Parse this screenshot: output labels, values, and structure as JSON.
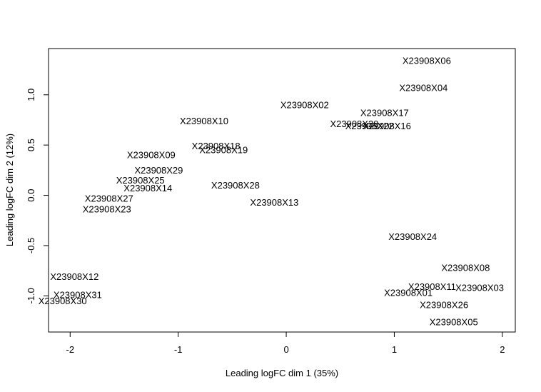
{
  "chart_data": {
    "type": "scatter",
    "title": "",
    "xlabel": "Leading logFC dim 1 (35%)",
    "ylabel": "Leading logFC dim 2 (12%)",
    "xlim": [
      -2.2,
      2.12
    ],
    "ylim": [
      -1.36,
      1.46
    ],
    "xticks": [
      -2,
      -1,
      0,
      1,
      2
    ],
    "xtick_labels": [
      "-2",
      "-1",
      "0",
      "1",
      "2"
    ],
    "yticks": [
      -1.0,
      -0.5,
      0.0,
      0.5,
      1.0
    ],
    "ytick_labels": [
      "-1.0",
      "-0.5",
      "0.0",
      "0.5",
      "1.0"
    ],
    "grid": false,
    "points": [
      {
        "label": "X23908X06",
        "x": 1.3,
        "y": 1.34
      },
      {
        "label": "X23908X04",
        "x": 1.27,
        "y": 1.07
      },
      {
        "label": "X23908X02",
        "x": 0.17,
        "y": 0.9
      },
      {
        "label": "X23908X17",
        "x": 0.91,
        "y": 0.82
      },
      {
        "label": "X23908X10",
        "x": -0.76,
        "y": 0.74
      },
      {
        "label": "X23908X20",
        "x": 0.63,
        "y": 0.71
      },
      {
        "label": "X23908X22",
        "x": 0.77,
        "y": 0.69
      },
      {
        "label": "X23908X16",
        "x": 0.93,
        "y": 0.69
      },
      {
        "label": "X23908X18",
        "x": -0.65,
        "y": 0.49
      },
      {
        "label": "X23908X19",
        "x": -0.58,
        "y": 0.45
      },
      {
        "label": "X23908X09",
        "x": -1.25,
        "y": 0.4
      },
      {
        "label": "X23908X29",
        "x": -1.18,
        "y": 0.25
      },
      {
        "label": "X23908X25",
        "x": -1.35,
        "y": 0.15
      },
      {
        "label": "X23908X14",
        "x": -1.28,
        "y": 0.07
      },
      {
        "label": "X23908X28",
        "x": -0.47,
        "y": 0.1
      },
      {
        "label": "X23908X27",
        "x": -1.64,
        "y": -0.03
      },
      {
        "label": "X23908X13",
        "x": -0.11,
        "y": -0.07
      },
      {
        "label": "X23908X23",
        "x": -1.66,
        "y": -0.14
      },
      {
        "label": "X23908X24",
        "x": 1.17,
        "y": -0.41
      },
      {
        "label": "X23908X08",
        "x": 1.66,
        "y": -0.72
      },
      {
        "label": "X23908X12",
        "x": -1.96,
        "y": -0.81
      },
      {
        "label": "X23908X11",
        "x": 1.35,
        "y": -0.91
      },
      {
        "label": "X23908X03",
        "x": 1.79,
        "y": -0.92
      },
      {
        "label": "X23908X01",
        "x": 1.13,
        "y": -0.97
      },
      {
        "label": "X23908X31",
        "x": -1.93,
        "y": -0.99
      },
      {
        "label": "X23908X30",
        "x": -2.07,
        "y": -1.05
      },
      {
        "label": "X23908X26",
        "x": 1.46,
        "y": -1.09
      },
      {
        "label": "X23908X05",
        "x": 1.55,
        "y": -1.26
      }
    ]
  }
}
